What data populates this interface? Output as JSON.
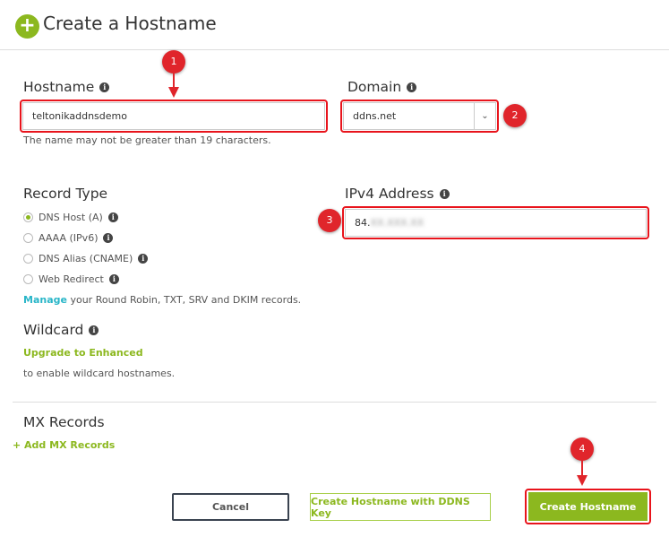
{
  "header": {
    "title": "Create a Hostname",
    "icon": "plus-circle-icon"
  },
  "hostname": {
    "label": "Hostname",
    "value": "teltonikaddnsdemo",
    "hint": "The name may not be greater than 19 characters."
  },
  "domain": {
    "label": "Domain",
    "value": "ddns.net"
  },
  "record_type": {
    "label": "Record Type",
    "options": [
      {
        "label": "DNS Host (A)",
        "selected": true
      },
      {
        "label": "AAAA (IPv6)",
        "selected": false
      },
      {
        "label": "DNS Alias (CNAME)",
        "selected": false
      },
      {
        "label": "Web Redirect",
        "selected": false
      }
    ],
    "manage_link": "Manage",
    "manage_text": " your Round Robin, TXT, SRV and DKIM records."
  },
  "ipv4": {
    "label": "IPv4 Address",
    "value": "84.",
    "blurred": "XX.XXX.XX"
  },
  "wildcard": {
    "label": "Wildcard",
    "upgrade": "Upgrade to Enhanced",
    "text": "to enable wildcard hostnames."
  },
  "mx": {
    "label": "MX Records",
    "add": "+ Add MX Records"
  },
  "buttons": {
    "cancel": "Cancel",
    "ddns_key": "Create Hostname with DDNS Key",
    "create": "Create Hostname"
  },
  "badges": [
    "1",
    "2",
    "3",
    "4"
  ],
  "colors": {
    "accent": "#8cb81f",
    "highlight": "#e8141c",
    "link": "#29b6c8"
  }
}
